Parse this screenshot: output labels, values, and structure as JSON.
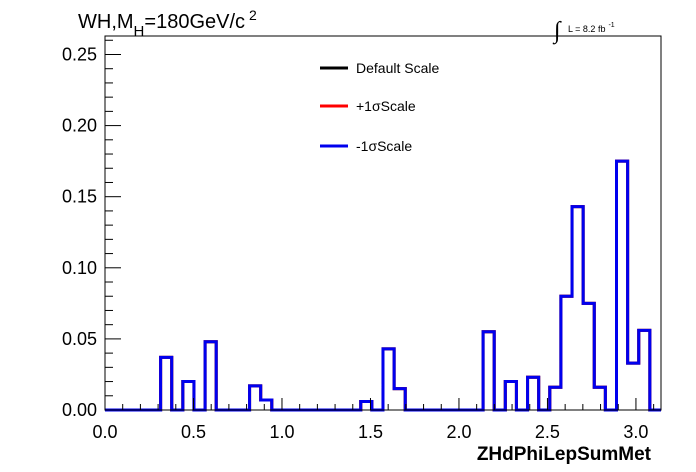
{
  "chart_data": {
    "type": "histogram-step",
    "title": {
      "main": "WH,M",
      "subscript": "H",
      "rest": "=180GeV/c",
      "superscript": "2"
    },
    "luminosity": {
      "integral": "∫",
      "text": "L = 8.2 fb",
      "superscript": "-1"
    },
    "xlabel": "ZHdPhiLepSumMet",
    "ylabel": "",
    "xlim": [
      0,
      3.1416
    ],
    "ylim": [
      0,
      0.263
    ],
    "x_ticks": [
      {
        "value": 0.0,
        "label": "0.0"
      },
      {
        "value": 0.5,
        "label": "0.5"
      },
      {
        "value": 1.0,
        "label": "1.0"
      },
      {
        "value": 1.5,
        "label": "1.5"
      },
      {
        "value": 2.0,
        "label": "2.0"
      },
      {
        "value": 2.5,
        "label": "2.5"
      },
      {
        "value": 3.0,
        "label": "3.0"
      }
    ],
    "y_ticks": [
      {
        "value": 0.0,
        "label": "0.00"
      },
      {
        "value": 0.05,
        "label": "0.05"
      },
      {
        "value": 0.1,
        "label": "0.10"
      },
      {
        "value": 0.15,
        "label": "0.15"
      },
      {
        "value": 0.2,
        "label": "0.20"
      },
      {
        "value": 0.25,
        "label": "0.25"
      }
    ],
    "bin_width": 0.06283,
    "series": [
      {
        "name": "Default Scale",
        "color": "#000000",
        "values": [
          0,
          0,
          0,
          0,
          0,
          0.037,
          0,
          0.02,
          0,
          0.048,
          0,
          0,
          0,
          0.017,
          0.007,
          0,
          0,
          0,
          0,
          0,
          0,
          0,
          0,
          0.006,
          0,
          0.043,
          0.015,
          0,
          0,
          0,
          0,
          0,
          0,
          0,
          0.055,
          0,
          0.02,
          0,
          0.023,
          0,
          0.016,
          0.08,
          0.143,
          0.075,
          0.016,
          0,
          0.175,
          0.033,
          0.056,
          0
        ]
      },
      {
        "name": "+1σScale",
        "color": "#ff0000",
        "values": [
          0,
          0,
          0,
          0,
          0,
          0.037,
          0,
          0.02,
          0,
          0.048,
          0,
          0,
          0,
          0.017,
          0.007,
          0,
          0,
          0,
          0,
          0,
          0,
          0,
          0,
          0.006,
          0,
          0.043,
          0.015,
          0,
          0,
          0,
          0,
          0,
          0,
          0,
          0.055,
          0,
          0.02,
          0,
          0.023,
          0,
          0.016,
          0.08,
          0.143,
          0.075,
          0.016,
          0,
          0.175,
          0.033,
          0.056,
          0
        ]
      },
      {
        "name": "-1σScale",
        "color": "#0000ee",
        "values": [
          0,
          0,
          0,
          0,
          0,
          0.037,
          0,
          0.02,
          0,
          0.048,
          0,
          0,
          0,
          0.017,
          0.007,
          0,
          0,
          0,
          0,
          0,
          0,
          0,
          0,
          0.006,
          0,
          0.043,
          0.015,
          0,
          0,
          0,
          0,
          0,
          0,
          0,
          0.055,
          0,
          0.02,
          0,
          0.023,
          0,
          0.016,
          0.08,
          0.143,
          0.075,
          0.016,
          0,
          0.175,
          0.033,
          0.056,
          0
        ]
      }
    ],
    "legend_position": "top-center"
  }
}
